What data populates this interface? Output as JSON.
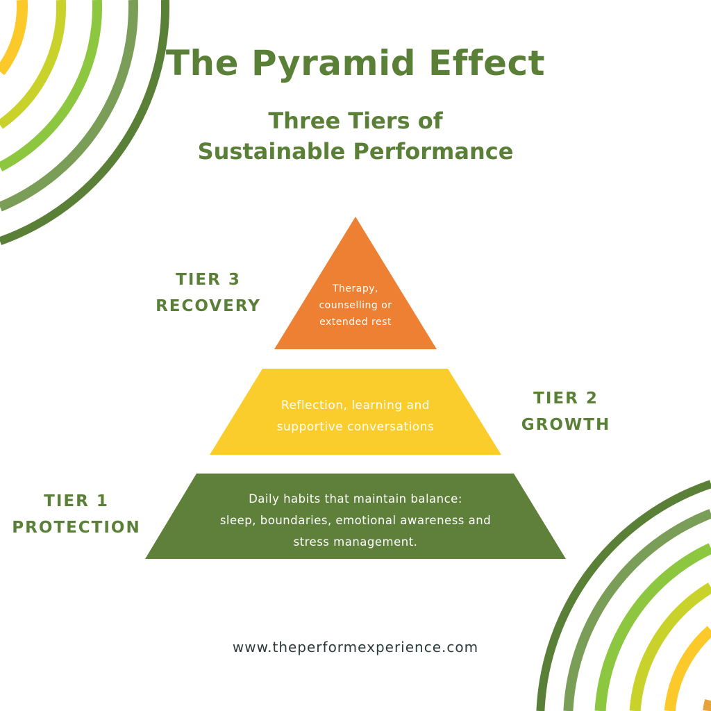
{
  "header": {
    "title": "The Pyramid Effect",
    "subtitle_line1": "Three Tiers of",
    "subtitle_line2": "Sustainable Performance"
  },
  "pyramid": {
    "tiers": [
      {
        "level": "TIER 3",
        "name": "RECOVERY",
        "lines": [
          "Therapy,",
          "counselling or",
          "extended rest"
        ],
        "color": "#ee8034"
      },
      {
        "level": "TIER 2",
        "name": "GROWTH",
        "lines": [
          "Reflection, learning and",
          "supportive conversations"
        ],
        "color": "#fbcd2c"
      },
      {
        "level": "TIER 1",
        "name": "PROTECTION",
        "lines": [
          "Daily habits that maintain balance:",
          "sleep, boundaries, emotional awareness and",
          "stress management."
        ],
        "color": "#5e803a"
      }
    ]
  },
  "decoration": {
    "arc_colors": [
      "#5a7f37",
      "#7a9e58",
      "#8dc63f",
      "#c9d22b",
      "#fcc92a",
      "#e8a23a"
    ]
  },
  "footer": {
    "url": "www.theperformexperience.com"
  }
}
